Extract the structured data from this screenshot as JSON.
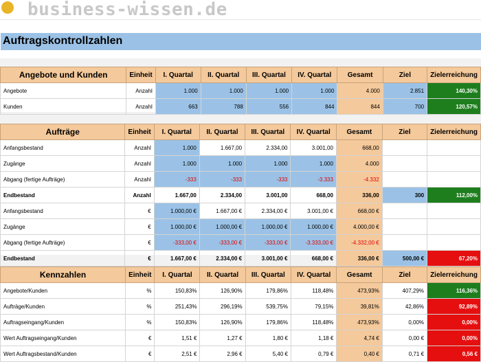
{
  "logo": {
    "text": "business-wissen.de"
  },
  "title": "Auftragskontrollzahlen",
  "header_cols": {
    "einheit": "Einheit",
    "q1": "I. Quartal",
    "q2": "II. Quartal",
    "q3": "III. Quartal",
    "q4": "IV. Quartal",
    "gesamt": "Gesamt",
    "ziel": "Ziel",
    "zielerreichung": "Zielerreichung"
  },
  "section1": {
    "title": "Angebote und Kunden",
    "rows": [
      {
        "label": "Angebote",
        "unit": "Anzahl",
        "q1": "1.000",
        "q2": "1.000",
        "q3": "1.000",
        "q4": "1.000",
        "gesamt": "4.000",
        "ziel": "2.851",
        "zr": "140,30%"
      },
      {
        "label": "Kunden",
        "unit": "Anzahl",
        "q1": "663",
        "q2": "788",
        "q3": "556",
        "q4": "844",
        "gesamt": "844",
        "ziel": "700",
        "zr": "120,57%"
      }
    ]
  },
  "section2": {
    "title": "Aufträge",
    "rows": [
      {
        "label": "Anfangsbestand",
        "unit": "Anzahl",
        "q1": "1.000",
        "q2": "1.667,00",
        "q3": "2.334,00",
        "q4": "3.001,00",
        "gesamt": "668,00",
        "ziel": "",
        "zr": ""
      },
      {
        "label": "Zugänge",
        "unit": "Anzahl",
        "q1": "1.000",
        "q2": "1.000",
        "q3": "1.000",
        "q4": "1.000",
        "gesamt": "4.000",
        "ziel": "",
        "zr": ""
      },
      {
        "label": "Abgang (fertige Aufträge)",
        "unit": "Anzahl",
        "q1": "-333",
        "q2": "-333",
        "q3": "-333",
        "q4": "-3.333",
        "gesamt": "-4.332",
        "ziel": "",
        "zr": ""
      },
      {
        "label": "Endbestand",
        "unit": "Anzahl",
        "q1": "1.667,00",
        "q2": "2.334,00",
        "q3": "3.001,00",
        "q4": "668,00",
        "gesamt": "336,00",
        "ziel": "300",
        "zr": "112,00%"
      },
      {
        "label": "Anfangsbestand",
        "unit": "€",
        "q1": "1.000,00 €",
        "q2": "1.667,00 €",
        "q3": "2.334,00 €",
        "q4": "3.001,00 €",
        "gesamt": "668,00 €",
        "ziel": "",
        "zr": ""
      },
      {
        "label": "Zugänge",
        "unit": "€",
        "q1": "1.000,00 €",
        "q2": "1.000,00 €",
        "q3": "1.000,00 €",
        "q4": "1.000,00 €",
        "gesamt": "4.000,00 €",
        "ziel": "",
        "zr": ""
      },
      {
        "label": "Abgang (fertige Aufträge)",
        "unit": "€",
        "q1": "-333,00 €",
        "q2": "-333,00 €",
        "q3": "-333,00 €",
        "q4": "-3.333,00 €",
        "gesamt": "-4.332,00 €",
        "ziel": "",
        "zr": ""
      },
      {
        "label": "Endbestand",
        "unit": "€",
        "q1": "1.667,00 €",
        "q2": "2.334,00 €",
        "q3": "3.001,00 €",
        "q4": "668,00 €",
        "gesamt": "336,00 €",
        "ziel": "500,00 €",
        "zr": "67,20%"
      }
    ]
  },
  "section3": {
    "title": "Kennzahlen",
    "rows": [
      {
        "label": "Angebote/Kunden",
        "unit": "%",
        "q1": "150,83%",
        "q2": "126,90%",
        "q3": "179,86%",
        "q4": "118,48%",
        "gesamt": "473,93%",
        "ziel": "407,29%",
        "zr": "116,36%"
      },
      {
        "label": "Aufträge/Kunden",
        "unit": "%",
        "q1": "251,43%",
        "q2": "296,19%",
        "q3": "539,75%",
        "q4": "79,15%",
        "gesamt": "39,81%",
        "ziel": "42,86%",
        "zr": "92,89%"
      },
      {
        "label": "Auftragseingang/Kunden",
        "unit": "%",
        "q1": "150,83%",
        "q2": "126,90%",
        "q3": "179,86%",
        "q4": "118,48%",
        "gesamt": "473,93%",
        "ziel": "0,00%",
        "zr": "0,00%"
      },
      {
        "label": "Wert Auftragseingang/Kunden",
        "unit": "€",
        "q1": "1,51 €",
        "q2": "1,27 €",
        "q3": "1,80 €",
        "q4": "1,18 €",
        "gesamt": "4,74 €",
        "ziel": "0,00 €",
        "zr": "0,00%"
      },
      {
        "label": "Wert Auftragsbestand/Kunden",
        "unit": "€",
        "q1": "2,51 €",
        "q2": "2,96 €",
        "q3": "5,40 €",
        "q4": "0,79 €",
        "gesamt": "0,40 €",
        "ziel": "0,71 €",
        "zr": "0,56 €"
      }
    ]
  },
  "colors": {
    "blue": "#9bc2e6",
    "orange": "#f4c99b",
    "green": "#1e7e1e",
    "red": "#e60f0f"
  }
}
